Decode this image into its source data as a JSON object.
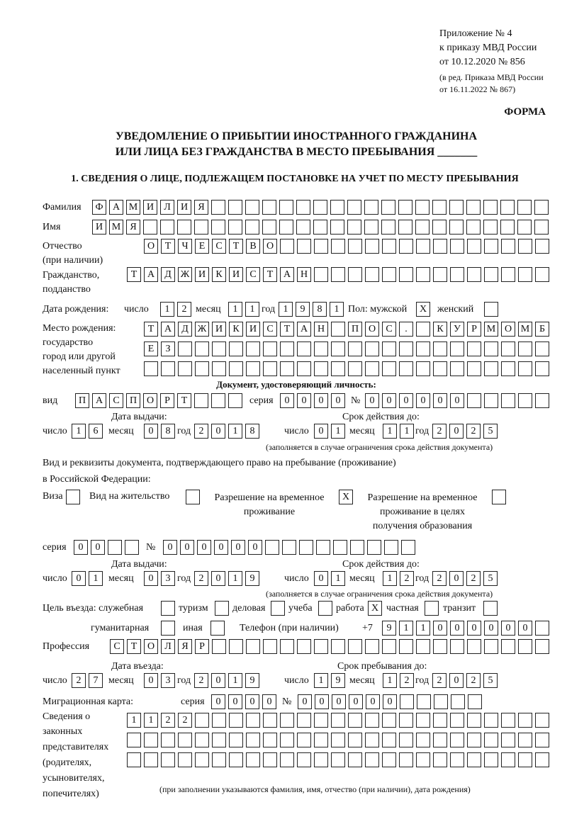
{
  "header": {
    "line1": "Приложение № 4",
    "line2": "к приказу МВД России",
    "line3": "от 10.12.2020 № 856",
    "line4": "(в ред. Приказа МВД России",
    "line5": "от 16.11.2022 № 867)"
  },
  "form_label": "ФОРМА",
  "title": {
    "line1": "УВЕДОМЛЕНИЕ О ПРИБЫТИИ ИНОСТРАННОГО ГРАЖДАНИНА",
    "line2": "ИЛИ ЛИЦА БЕЗ ГРАЖДАНСТВА В МЕСТО ПРЕБЫВАНИЯ _______"
  },
  "section1": "1. СВЕДЕНИЯ О ЛИЦЕ, ПОДЛЕЖАЩЕМ ПОСТАНОВКЕ НА УЧЕТ ПО МЕСТУ ПРЕБЫВАНИЯ",
  "labels": {
    "surname": "Фамилия",
    "name": "Имя",
    "patronymic1": "Отчество",
    "patronymic2": "(при наличии)",
    "citizenship1": "Гражданство,",
    "citizenship2": "подданство",
    "birth_date": "Дата рождения:",
    "day": "число",
    "month": "месяц",
    "year": "год",
    "sex": "Пол: мужской",
    "female": "женский",
    "birthplace1": "Место рождения:",
    "birthplace2": "государство",
    "birthplace3": "город или другой",
    "birthplace4": "населенный пункт",
    "id_doc": "Документ, удостоверяющий личность:",
    "kind": "вид",
    "series": "серия",
    "number": "№",
    "issue_date": "Дата выдачи:",
    "valid_until": "Срок действия до:",
    "validity_note": "(заполняется в случае ограничения срока действия документа)",
    "right_doc1": "Вид и реквизиты документа, подтверждающего право на пребывание (проживание)",
    "right_doc2": "в Российской Федерации:",
    "visa": "Виза",
    "residence": "Вид на жительство",
    "trp1": "Разрешение на временное",
    "trp2": "проживание",
    "trp_edu1": "Разрешение на временное",
    "trp_edu2": "проживание в целях",
    "trp_edu3": "получения образования",
    "purpose": "Цель въезда: служебная",
    "tourism": "туризм",
    "business": "деловая",
    "study": "учеба",
    "work": "работа",
    "private": "частная",
    "transit": "транзит",
    "humanitarian": "гуманитарная",
    "other": "иная",
    "phone": "Телефон (при наличии)",
    "phone_prefix": "+7",
    "profession": "Профессия",
    "entry_date": "Дата въезда:",
    "stay_until": "Срок пребывания до:",
    "migration_card": "Миграционная карта:",
    "reps1": "Сведения о",
    "reps2": "законных",
    "reps3": "представителях",
    "reps4": "(родителях,",
    "reps5": "усыновителях,",
    "reps6": "попечителях)",
    "reps_note": "(при заполнении указываются фамилия, имя, отчество (при наличии), дата рождения)"
  },
  "values": {
    "surname": "ФАМИЛИЯ",
    "name": "ИМЯ",
    "patronymic": "ОТЧЕСТВО",
    "citizenship": "ТАДЖИКИСТАН",
    "birth_day": "12",
    "birth_month": "11",
    "birth_year": "1981",
    "sex_male": "X",
    "sex_female": "",
    "birthplace_row1": "ТАДЖИКИСТАН ПОС. КУРМОМБ",
    "birthplace_row2": "ЕЗ",
    "birthplace_row3": "",
    "id_kind": "ПАСПОРТ",
    "id_series": "0000",
    "id_number": "000000",
    "id_issue_day": "16",
    "id_issue_month": "08",
    "id_issue_year": "2018",
    "id_valid_day": "01",
    "id_valid_month": "11",
    "id_valid_year": "2025",
    "visa": "",
    "residence": "",
    "trp": "X",
    "trp_edu": "",
    "rd_series": "00",
    "rd_number": "000000",
    "rd_issue_day": "01",
    "rd_issue_month": "03",
    "rd_issue_year": "2019",
    "rd_valid_day": "01",
    "rd_valid_month": "12",
    "rd_valid_year": "2025",
    "purpose_service": "",
    "purpose_tourism": "",
    "purpose_business": "",
    "purpose_study": "",
    "purpose_work": "X",
    "purpose_private": "",
    "purpose_transit": "",
    "purpose_humanitarian": "",
    "purpose_other": "",
    "phone": "911000000",
    "profession": "СТОЛЯР",
    "entry_day": "27",
    "entry_month": "03",
    "entry_year": "2019",
    "stay_day": "19",
    "stay_month": "12",
    "stay_year": "2025",
    "mc_series": "0000",
    "mc_number": "000000",
    "reps_row1": "1122",
    "reps_row2": "",
    "reps_row3": ""
  }
}
